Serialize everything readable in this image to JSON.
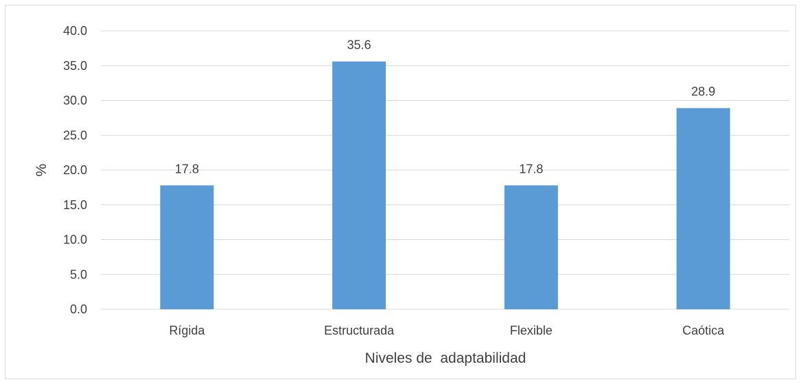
{
  "chart_data": {
    "type": "bar",
    "categories": [
      "Rígida",
      "Estructurada",
      "Flexible",
      "Caótica"
    ],
    "values": [
      17.8,
      35.6,
      17.8,
      28.9
    ],
    "value_labels": [
      "17.8",
      "35.6",
      "17.8",
      "28.9"
    ],
    "title": "",
    "xlabel": "Niveles de  adaptabilidad",
    "ylabel": "%",
    "ylim": [
      0,
      40
    ],
    "yticks": [
      "0.0",
      "5.0",
      "10.0",
      "15.0",
      "20.0",
      "25.0",
      "30.0",
      "35.0",
      "40.0"
    ],
    "grid": true,
    "legend": "none",
    "bar_color": "#5b9bd5",
    "grid_color": "#d9d9d9",
    "text_color": "#404040"
  }
}
